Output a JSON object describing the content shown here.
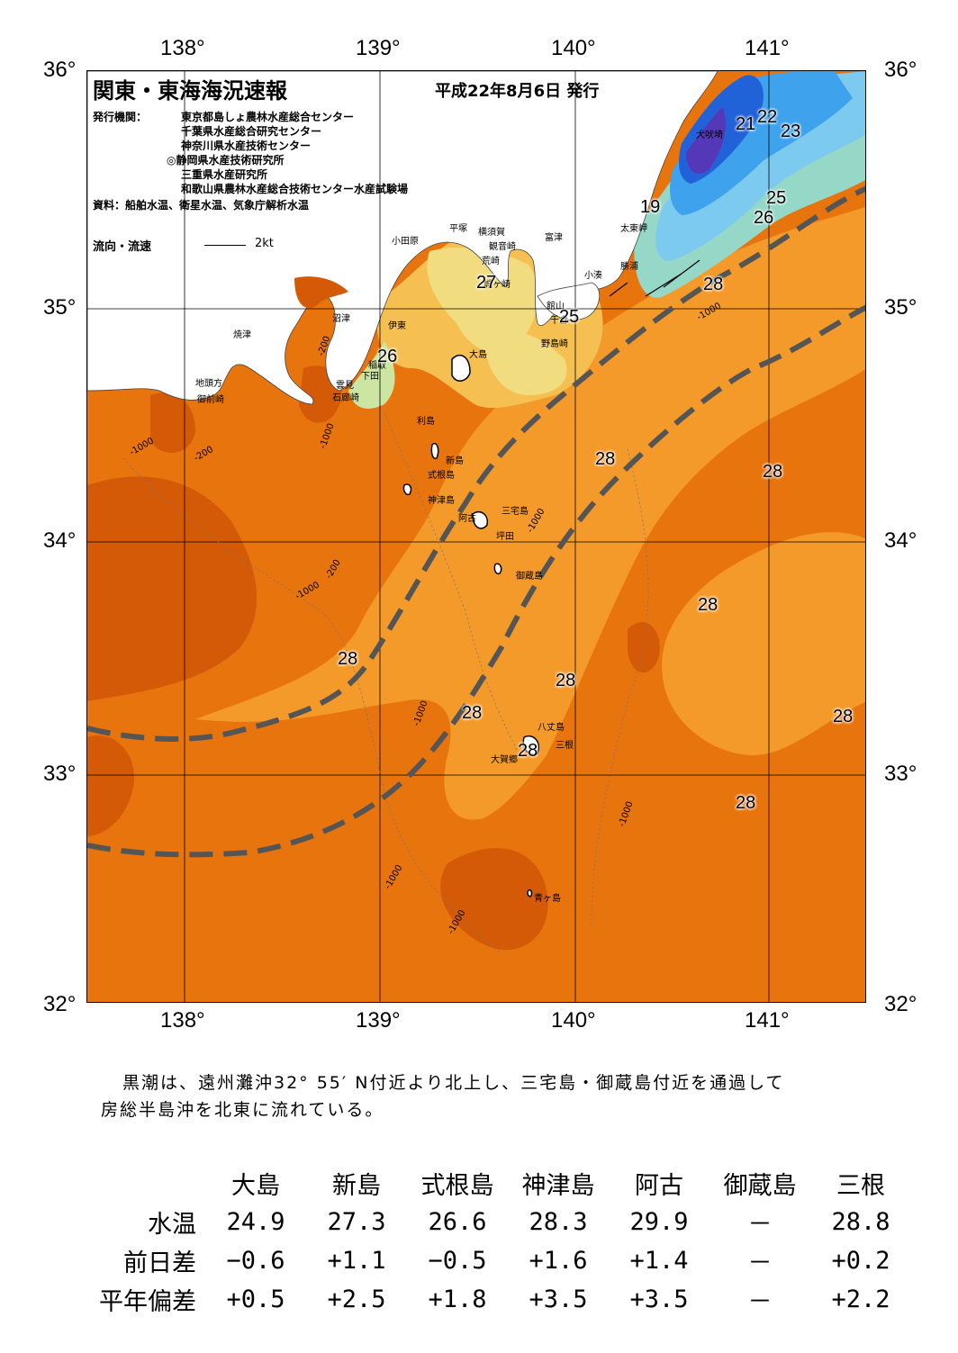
{
  "map": {
    "title": "関東・東海海況速報",
    "date": "平成22年8月6日 発行",
    "issuer_label": "発行機関：",
    "issuers": [
      "東京都島しょ農林水産総合センター",
      "千葉県水産総合研究センター",
      "神奈川県水産技術センター",
      "◎静岡県水産技術研究所",
      "三重県水産研究所",
      "和歌山県農林水産総合技術センター水産試験場"
    ],
    "source": "資料：船舶水温、衛星水温、気象庁解析水温",
    "current_legend": "流向・流速",
    "current_scale": "2kt",
    "lon_ticks": [
      "138°",
      "139°",
      "140°",
      "141°"
    ],
    "lat_ticks": [
      "36°",
      "35°",
      "34°",
      "33°",
      "32°"
    ],
    "places": {
      "inubozaki": "犬吠埼",
      "taitomisaki": "太東岬",
      "katsuura": "勝浦",
      "kominato": "小湊",
      "futtsu": "富津",
      "kannonzaki": "観音崎",
      "yokosuka": "横須賀",
      "hiratsuka": "平塚",
      "odawara": "小田原",
      "jogasaki": "城ヶ崎",
      "arasaki": "荒崎",
      "tateyama": "館山",
      "chikura": "千倉",
      "nojimazaki": "野島崎",
      "numazu": "沼津",
      "ito": "伊東",
      "inatori": "稲取",
      "shimoda": "下田",
      "kumomi": "雲見",
      "irozaki": "石廊崎",
      "yaizu": "焼津",
      "jitogata": "地頭方",
      "omaezaki": "御前崎",
      "oshima": "大島",
      "toshima": "利島",
      "niijima": "新島",
      "shikinejima": "式根島",
      "kozushima": "神津島",
      "miyakejima": "三宅島",
      "ako": "阿古",
      "tsubota": "坪田",
      "mikurajima": "御蔵島",
      "hachijojima": "八丈島",
      "mitsune": "三根",
      "okago": "大賀郷",
      "aogashima": "青ヶ島"
    },
    "isotherms": [
      "21",
      "22",
      "23",
      "19",
      "25",
      "26",
      "28",
      "25",
      "26",
      "27",
      "28",
      "28",
      "28",
      "28",
      "28",
      "28",
      "28",
      "28",
      "28"
    ],
    "depth_labels": [
      "-200",
      "-1000"
    ],
    "colors": {
      "t28plus": "#d45a08",
      "t28": "#e8740e",
      "t27": "#f49a2a",
      "t26": "#f6bf52",
      "t25": "#f2dc80",
      "t24": "#cde5a2",
      "t23": "#95d8c8",
      "t22": "#7ccaf0",
      "t21": "#3ea3ec",
      "t20": "#2262d8",
      "t19": "#5438b8",
      "kuroshio": "#555555",
      "land": "#ffffff"
    }
  },
  "summary": {
    "line1": "黒潮は、遠州灘沖32° 55′ N付近より北上し、三宅島・御蔵島付近を通過して",
    "line2": "房総半島沖を北東に流れている。"
  },
  "stats": {
    "columns": [
      "大島",
      "新島",
      "式根島",
      "神津島",
      "阿古",
      "御蔵島",
      "三根"
    ],
    "rows": [
      {
        "label": "水温",
        "values": [
          "24.9",
          "27.3",
          "26.6",
          "28.3",
          "29.9",
          "－",
          "28.8"
        ]
      },
      {
        "label": "前日差",
        "values": [
          "−0.6",
          "+1.1",
          "−0.5",
          "+1.6",
          "+1.4",
          "－",
          "+0.2"
        ]
      },
      {
        "label": "平年偏差",
        "values": [
          "+0.5",
          "+2.5",
          "+1.8",
          "+3.5",
          "+3.5",
          "－",
          "+2.2"
        ]
      }
    ]
  }
}
